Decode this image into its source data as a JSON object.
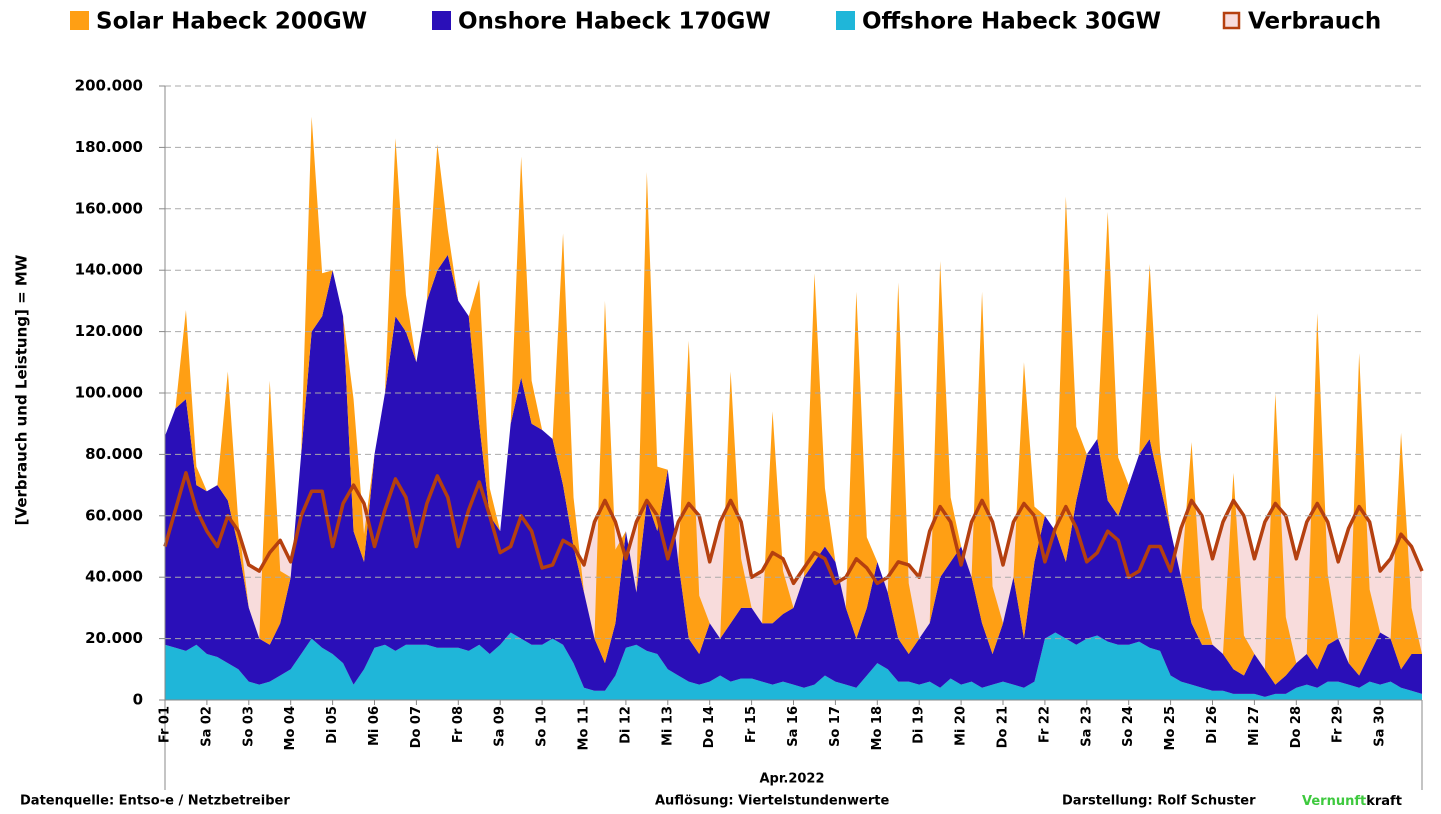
{
  "chart_data": {
    "type": "stacked_area",
    "ylabel": "[Verbrauch und Leistung] = MW",
    "xlabel": "Apr.2022",
    "xlim": [
      0,
      30
    ],
    "xticks": [
      {
        "value": 0,
        "label": "Fr 01"
      },
      {
        "value": 1,
        "label": "Sa 02"
      },
      {
        "value": 2,
        "label": "So 03"
      },
      {
        "value": 3,
        "label": "Mo 04"
      },
      {
        "value": 4,
        "label": "Di 05"
      },
      {
        "value": 5,
        "label": "Mi 06"
      },
      {
        "value": 6,
        "label": "Do 07"
      },
      {
        "value": 7,
        "label": "Fr 08"
      },
      {
        "value": 8,
        "label": "Sa 09"
      },
      {
        "value": 9,
        "label": "So 10"
      },
      {
        "value": 10,
        "label": "Mo 11"
      },
      {
        "value": 11,
        "label": "Di 12"
      },
      {
        "value": 12,
        "label": "Mi 13"
      },
      {
        "value": 13,
        "label": "Do 14"
      },
      {
        "value": 14,
        "label": "Fr 15"
      },
      {
        "value": 15,
        "label": "Sa 16"
      },
      {
        "value": 16,
        "label": "So 17"
      },
      {
        "value": 17,
        "label": "Mo 18"
      },
      {
        "value": 18,
        "label": "Di 19"
      },
      {
        "value": 19,
        "label": "Mi 20"
      },
      {
        "value": 20,
        "label": "Do 21"
      },
      {
        "value": 21,
        "label": "Fr 22"
      },
      {
        "value": 22,
        "label": "Sa 23"
      },
      {
        "value": 23,
        "label": "So 24"
      },
      {
        "value": 24,
        "label": "Mo 25"
      },
      {
        "value": 25,
        "label": "Di 26"
      },
      {
        "value": 26,
        "label": "Mi 27"
      },
      {
        "value": 27,
        "label": "Do 28"
      },
      {
        "value": 28,
        "label": "Fr 29"
      },
      {
        "value": 29,
        "label": "Sa 30"
      }
    ],
    "ylim": [
      0,
      200000
    ],
    "yticks": [
      0,
      {
        "value": 20000,
        "label": "20.000"
      },
      {
        "value": 40000,
        "label": "40.000"
      },
      {
        "value": 60000,
        "label": "60.000"
      },
      {
        "value": 80000,
        "label": "80.000"
      },
      {
        "value": 100000,
        "label": "100.000"
      },
      {
        "value": 120000,
        "label": "120.000"
      },
      {
        "value": 140000,
        "label": "140.000"
      },
      {
        "value": 160000,
        "label": "160.000"
      },
      {
        "value": 180000,
        "label": "180.000"
      },
      {
        "value": 200000,
        "label": "200.000"
      }
    ],
    "grid": true,
    "legend": "top",
    "x": [
      0,
      0.25,
      0.5,
      0.75,
      1,
      1.25,
      1.5,
      1.75,
      2,
      2.25,
      2.5,
      2.75,
      3,
      3.25,
      3.5,
      3.75,
      4,
      4.25,
      4.5,
      4.75,
      5,
      5.25,
      5.5,
      5.75,
      6,
      6.25,
      6.5,
      6.75,
      7,
      7.25,
      7.5,
      7.75,
      8,
      8.25,
      8.5,
      8.75,
      9,
      9.25,
      9.5,
      9.75,
      10,
      10.25,
      10.5,
      10.75,
      11,
      11.25,
      11.5,
      11.75,
      12,
      12.25,
      12.5,
      12.75,
      13,
      13.25,
      13.5,
      13.75,
      14,
      14.25,
      14.5,
      14.75,
      15,
      15.25,
      15.5,
      15.75,
      16,
      16.25,
      16.5,
      16.75,
      17,
      17.25,
      17.5,
      17.75,
      18,
      18.25,
      18.5,
      18.75,
      19,
      19.25,
      19.5,
      19.75,
      20,
      20.25,
      20.5,
      20.75,
      21,
      21.25,
      21.5,
      21.75,
      22,
      22.25,
      22.5,
      22.75,
      23,
      23.25,
      23.5,
      23.75,
      24,
      24.25,
      24.5,
      24.75,
      25,
      25.25,
      25.5,
      25.75,
      26,
      26.25,
      26.5,
      26.75,
      27,
      27.25,
      27.5,
      27.75,
      28,
      28.25,
      28.5,
      28.75,
      29,
      29.25,
      29.5,
      29.75,
      30
    ],
    "series": [
      {
        "name": "Solar Habeck 200GW",
        "type": "area",
        "color": "#ff9f14",
        "values": [
          0,
          0,
          29000,
          6000,
          0,
          0,
          42000,
          8000,
          0,
          0,
          86000,
          17000,
          0,
          0,
          70000,
          14000,
          0,
          0,
          43000,
          9000,
          0,
          0,
          58000,
          12000,
          0,
          0,
          41000,
          8000,
          0,
          0,
          47000,
          9000,
          0,
          0,
          72000,
          14000,
          0,
          0,
          82000,
          16000,
          0,
          0,
          118000,
          24000,
          0,
          0,
          107000,
          21000,
          0,
          0,
          97000,
          19000,
          0,
          0,
          82000,
          16000,
          0,
          0,
          69000,
          14000,
          0,
          0,
          94000,
          19000,
          0,
          0,
          113000,
          23000,
          0,
          0,
          116000,
          23000,
          0,
          0,
          103000,
          21000,
          0,
          0,
          108000,
          22000,
          0,
          0,
          90000,
          18000,
          0,
          0,
          119000,
          24000,
          0,
          0,
          94000,
          19000,
          0,
          0,
          57000,
          11000,
          0,
          0,
          59000,
          12000,
          0,
          0,
          64000,
          13000,
          0,
          0,
          95000,
          19000,
          0,
          0,
          116000,
          23000,
          0,
          0,
          105000,
          21000,
          0,
          0,
          77000,
          15000,
          0
        ]
      },
      {
        "name": "Onshore Habeck 170GW",
        "type": "area",
        "color": "#2a0fb8",
        "values": [
          68000,
          78000,
          82000,
          52000,
          53000,
          56000,
          53000,
          40000,
          24000,
          15000,
          12000,
          17000,
          30000,
          65000,
          100000,
          108000,
          125000,
          113000,
          50000,
          35000,
          63000,
          82000,
          109000,
          102000,
          92000,
          112000,
          123000,
          128000,
          113000,
          109000,
          72000,
          45000,
          37000,
          68000,
          85000,
          72000,
          70000,
          65000,
          52000,
          38000,
          31000,
          17000,
          9000,
          17000,
          38000,
          17000,
          49000,
          40000,
          65000,
          37000,
          14000,
          10000,
          19000,
          12000,
          19000,
          23000,
          23000,
          19000,
          20000,
          22000,
          25000,
          36000,
          40000,
          42000,
          39000,
          25000,
          16000,
          22000,
          33000,
          25000,
          14000,
          9000,
          15000,
          19000,
          36000,
          38000,
          45000,
          34000,
          21000,
          10000,
          19000,
          35000,
          16000,
          39000,
          40000,
          33000,
          25000,
          47000,
          60000,
          64000,
          46000,
          42000,
          52000,
          61000,
          68000,
          54000,
          47000,
          34000,
          20000,
          14000,
          15000,
          12000,
          8000,
          6000,
          13000,
          9000,
          3000,
          6000,
          8000,
          10000,
          6000,
          12000,
          14000,
          7000,
          4000,
          9000,
          17000,
          14000,
          6000,
          12000,
          13000
        ]
      },
      {
        "name": "Offshore Habeck 30GW",
        "type": "area",
        "color": "#1fb6d9",
        "values": [
          18000,
          17000,
          16000,
          18000,
          15000,
          14000,
          12000,
          10000,
          6000,
          5000,
          6000,
          8000,
          10000,
          15000,
          20000,
          17000,
          15000,
          12000,
          5000,
          10000,
          17000,
          18000,
          16000,
          18000,
          18000,
          18000,
          17000,
          17000,
          17000,
          16000,
          18000,
          15000,
          18000,
          22000,
          20000,
          18000,
          18000,
          20000,
          18000,
          12000,
          4000,
          3000,
          3000,
          8000,
          17000,
          18000,
          16000,
          15000,
          10000,
          8000,
          6000,
          5000,
          6000,
          8000,
          6000,
          7000,
          7000,
          6000,
          5000,
          6000,
          5000,
          4000,
          5000,
          8000,
          6000,
          5000,
          4000,
          8000,
          12000,
          10000,
          6000,
          6000,
          5000,
          6000,
          4000,
          7000,
          5000,
          6000,
          4000,
          5000,
          6000,
          5000,
          4000,
          6000,
          20000,
          22000,
          20000,
          18000,
          20000,
          21000,
          19000,
          18000,
          18000,
          19000,
          17000,
          16000,
          8000,
          6000,
          5000,
          4000,
          3000,
          3000,
          2000,
          2000,
          2000,
          1000,
          2000,
          2000,
          4000,
          5000,
          4000,
          6000,
          6000,
          5000,
          4000,
          6000,
          5000,
          6000,
          4000,
          3000,
          2000
        ]
      },
      {
        "name": "Verbrauch",
        "type": "line",
        "color": "#b5400f",
        "fill": "#f8dcdc",
        "values": [
          50000,
          62000,
          74000,
          62000,
          55000,
          50000,
          60000,
          55000,
          44000,
          42000,
          48000,
          52000,
          45000,
          60000,
          68000,
          68000,
          50000,
          64000,
          70000,
          64000,
          50000,
          62000,
          72000,
          66000,
          50000,
          64000,
          73000,
          66000,
          50000,
          62000,
          71000,
          60000,
          48000,
          50000,
          60000,
          55000,
          43000,
          44000,
          52000,
          50000,
          44000,
          58000,
          65000,
          58000,
          46000,
          58000,
          65000,
          60000,
          46000,
          58000,
          64000,
          60000,
          45000,
          58000,
          65000,
          58000,
          40000,
          42000,
          48000,
          46000,
          38000,
          43000,
          48000,
          46000,
          38000,
          40000,
          46000,
          43000,
          38000,
          40000,
          45000,
          44000,
          40000,
          55000,
          63000,
          58000,
          44000,
          58000,
          65000,
          58000,
          44000,
          58000,
          64000,
          60000,
          45000,
          56000,
          63000,
          56000,
          45000,
          48000,
          55000,
          52000,
          40000,
          42000,
          50000,
          50000,
          42000,
          56000,
          65000,
          60000,
          46000,
          58000,
          65000,
          60000,
          46000,
          58000,
          64000,
          60000,
          46000,
          58000,
          64000,
          58000,
          45000,
          56000,
          63000,
          58000,
          42000,
          46000,
          54000,
          50000,
          42000
        ]
      }
    ]
  },
  "footer": {
    "source": "Datenquelle: Entso-e  / Netzbetreiber",
    "resolution": "Auflösung: Viertelstundenwerte",
    "author": "Darstellung:  Rolf Schuster",
    "brand_green": "Vernunft",
    "brand": "kraft"
  }
}
